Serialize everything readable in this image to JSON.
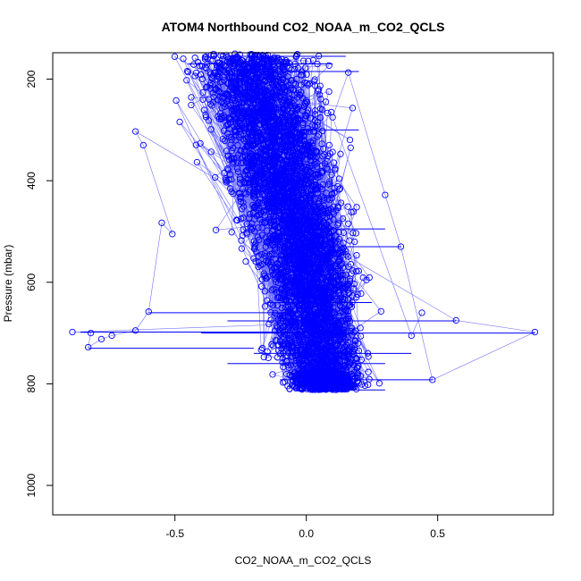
{
  "chart_data": {
    "type": "scatter",
    "title": "ATOM4 Northbound CO2_NOAA_m_CO2_QCLS",
    "xlabel": "CO2_NOAA_m_CO2_QCLS",
    "ylabel": "Pressure (mbar)",
    "xlim": [
      -0.965,
      0.94
    ],
    "ylim": [
      1058,
      148
    ],
    "y_inverted": true,
    "x_ticks": [
      -0.5,
      0.0,
      0.5
    ],
    "x_tick_labels": [
      "-0.5",
      "0.0",
      "0.5"
    ],
    "y_ticks": [
      200,
      400,
      600,
      800,
      1000
    ],
    "y_tick_labels": [
      "200",
      "400",
      "600",
      "800",
      "1000"
    ],
    "grid": false,
    "marker": "open-circle",
    "connected_lines": true,
    "color": "#0000ff",
    "profile_center": [
      {
        "p": 150,
        "x": -0.22
      },
      {
        "p": 200,
        "x": -0.2
      },
      {
        "p": 250,
        "x": -0.18
      },
      {
        "p": 300,
        "x": -0.15
      },
      {
        "p": 350,
        "x": -0.12
      },
      {
        "p": 400,
        "x": -0.1
      },
      {
        "p": 450,
        "x": -0.06
      },
      {
        "p": 500,
        "x": -0.02
      },
      {
        "p": 550,
        "x": 0.0
      },
      {
        "p": 600,
        "x": 0.02
      },
      {
        "p": 650,
        "x": 0.03
      },
      {
        "p": 700,
        "x": 0.04
      },
      {
        "p": 750,
        "x": 0.05
      },
      {
        "p": 800,
        "x": 0.07
      },
      {
        "p": 812,
        "x": 0.08
      }
    ],
    "profile_spread": [
      {
        "p": 150,
        "s": 0.2
      },
      {
        "p": 300,
        "s": 0.17
      },
      {
        "p": 450,
        "s": 0.15
      },
      {
        "p": 550,
        "s": 0.14
      },
      {
        "p": 650,
        "s": 0.14
      },
      {
        "p": 750,
        "s": 0.13
      },
      {
        "p": 812,
        "s": 0.1
      }
    ],
    "pressure_range": [
      150,
      812
    ],
    "n_points": 5200,
    "outliers": [
      {
        "x": -0.89,
        "y": 698
      },
      {
        "x": -0.82,
        "y": 700
      },
      {
        "x": -0.83,
        "y": 728
      },
      {
        "x": -0.78,
        "y": 712
      },
      {
        "x": -0.74,
        "y": 705
      },
      {
        "x": -0.65,
        "y": 695
      },
      {
        "x": -0.6,
        "y": 658
      },
      {
        "x": -0.55,
        "y": 483
      },
      {
        "x": -0.51,
        "y": 505
      },
      {
        "x": -0.62,
        "y": 330
      },
      {
        "x": -0.65,
        "y": 303
      },
      {
        "x": 0.57,
        "y": 675
      },
      {
        "x": 0.87,
        "y": 698
      },
      {
        "x": 0.48,
        "y": 792
      },
      {
        "x": 0.36,
        "y": 530
      },
      {
        "x": 0.3,
        "y": 428
      },
      {
        "x": 0.16,
        "y": 187
      },
      {
        "x": 0.1,
        "y": 275
      },
      {
        "x": 0.4,
        "y": 705
      },
      {
        "x": 0.44,
        "y": 660
      }
    ],
    "horizontal_segments": [
      {
        "x1": -0.86,
        "x2": 0.1,
        "y": 698
      },
      {
        "x1": -0.83,
        "x2": -0.2,
        "y": 730
      },
      {
        "x1": -0.4,
        "x2": 0.87,
        "y": 700
      },
      {
        "x1": -0.3,
        "x2": 0.57,
        "y": 676
      },
      {
        "x1": -0.3,
        "x2": 0.3,
        "y": 760
      },
      {
        "x1": -0.2,
        "x2": 0.4,
        "y": 740
      },
      {
        "x1": -0.1,
        "x2": 0.48,
        "y": 792
      },
      {
        "x1": -0.15,
        "x2": 0.25,
        "y": 640
      },
      {
        "x1": -0.6,
        "x2": 0.05,
        "y": 660
      },
      {
        "x1": 0.0,
        "x2": 0.3,
        "y": 812
      },
      {
        "x1": -0.05,
        "x2": 0.36,
        "y": 530
      },
      {
        "x1": -0.1,
        "x2": 0.3,
        "y": 495
      },
      {
        "x1": -0.2,
        "x2": 0.2,
        "y": 300
      },
      {
        "x1": -0.25,
        "x2": 0.2,
        "y": 185
      },
      {
        "x1": -0.45,
        "x2": 0.1,
        "y": 170
      },
      {
        "x1": -0.3,
        "x2": 0.15,
        "y": 155
      }
    ]
  }
}
